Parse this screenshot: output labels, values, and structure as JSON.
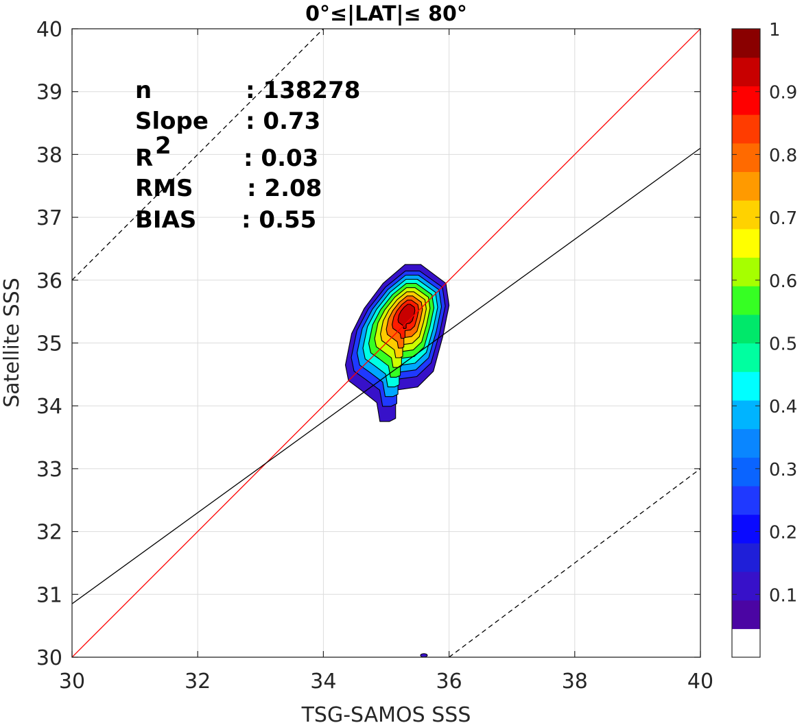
{
  "chart_data": {
    "type": "contour",
    "title": "0°≤|LAT|≤ 80°",
    "xlabel": "TSG-SAMOS SSS",
    "ylabel": "Satellite SSS",
    "xlim": [
      30,
      40
    ],
    "ylim": [
      30,
      40
    ],
    "x_ticks": [
      "30",
      "32",
      "34",
      "36",
      "38",
      "40"
    ],
    "y_ticks": [
      "30",
      "31",
      "32",
      "33",
      "34",
      "35",
      "36",
      "37",
      "38",
      "39",
      "40"
    ],
    "grid": true,
    "stats": [
      {
        "label": "n",
        "value": ": 138278"
      },
      {
        "label": "Slope",
        "value": ": 0.73"
      },
      {
        "label": "R",
        "sup": "2",
        "value": ": 0.03"
      },
      {
        "label": "RMS",
        "value": ": 2.08"
      },
      {
        "label": "BIAS",
        "value": ": 0.55"
      }
    ],
    "reference_lines": [
      {
        "name": "one-to-one",
        "color": "#ff0000",
        "style": "solid",
        "points": [
          [
            30,
            30
          ],
          [
            40,
            40
          ]
        ]
      },
      {
        "name": "regression",
        "color": "#000000",
        "style": "solid",
        "points": [
          [
            30,
            30.85
          ],
          [
            40,
            38.1
          ]
        ]
      },
      {
        "name": "upper-bound",
        "color": "#000000",
        "style": "dashed",
        "points": [
          [
            30,
            36
          ],
          [
            34,
            40
          ]
        ]
      },
      {
        "name": "lower-bound",
        "color": "#000000",
        "style": "dashed",
        "points": [
          [
            36,
            30
          ],
          [
            40,
            33
          ]
        ]
      }
    ],
    "density_contours": {
      "center": [
        35.35,
        35.5
      ],
      "levels": [
        0.05,
        0.15,
        0.25,
        0.35,
        0.45,
        0.55,
        0.65,
        0.75,
        0.85,
        0.95
      ],
      "level_colors": [
        "#3711c9",
        "#1f39ff",
        "#00a7ff",
        "#00ffe4",
        "#36ff23",
        "#ccff00",
        "#ffcc00",
        "#ff6a00",
        "#ff1c00",
        "#c80000"
      ],
      "outer_region": [
        [
          34.4,
          34.4
        ],
        [
          34.35,
          34.65
        ],
        [
          34.45,
          35.15
        ],
        [
          34.65,
          35.55
        ],
        [
          34.95,
          35.95
        ],
        [
          35.3,
          36.25
        ],
        [
          35.55,
          36.25
        ],
        [
          35.95,
          35.95
        ],
        [
          36.0,
          35.6
        ],
        [
          35.9,
          35.1
        ],
        [
          35.75,
          34.55
        ],
        [
          35.5,
          34.3
        ],
        [
          35.15,
          34.25
        ],
        [
          35.15,
          33.8
        ],
        [
          35.05,
          33.75
        ],
        [
          34.9,
          33.75
        ],
        [
          34.85,
          34.05
        ],
        [
          34.6,
          34.25
        ]
      ],
      "small_region_center": [
        35.6,
        30.03
      ]
    },
    "colorbar": {
      "range": [
        0,
        1
      ],
      "tick_labels": [
        "0.1",
        "0.2",
        "0.3",
        "0.4",
        "0.5",
        "0.6",
        "0.7",
        "0.8",
        "0.9",
        "1"
      ],
      "colors": [
        "#ffffff",
        "#4b05a3",
        "#3711c9",
        "#1f1fd8",
        "#0a0aff",
        "#1f39ff",
        "#0a64ff",
        "#0a86ff",
        "#00b4ff",
        "#00ffff",
        "#00ffa0",
        "#00e86a",
        "#36ff23",
        "#a6ff00",
        "#ffff00",
        "#ffd200",
        "#ff9a00",
        "#ff6a00",
        "#ff3c00",
        "#ff0000",
        "#c80000",
        "#8a0000"
      ]
    }
  }
}
